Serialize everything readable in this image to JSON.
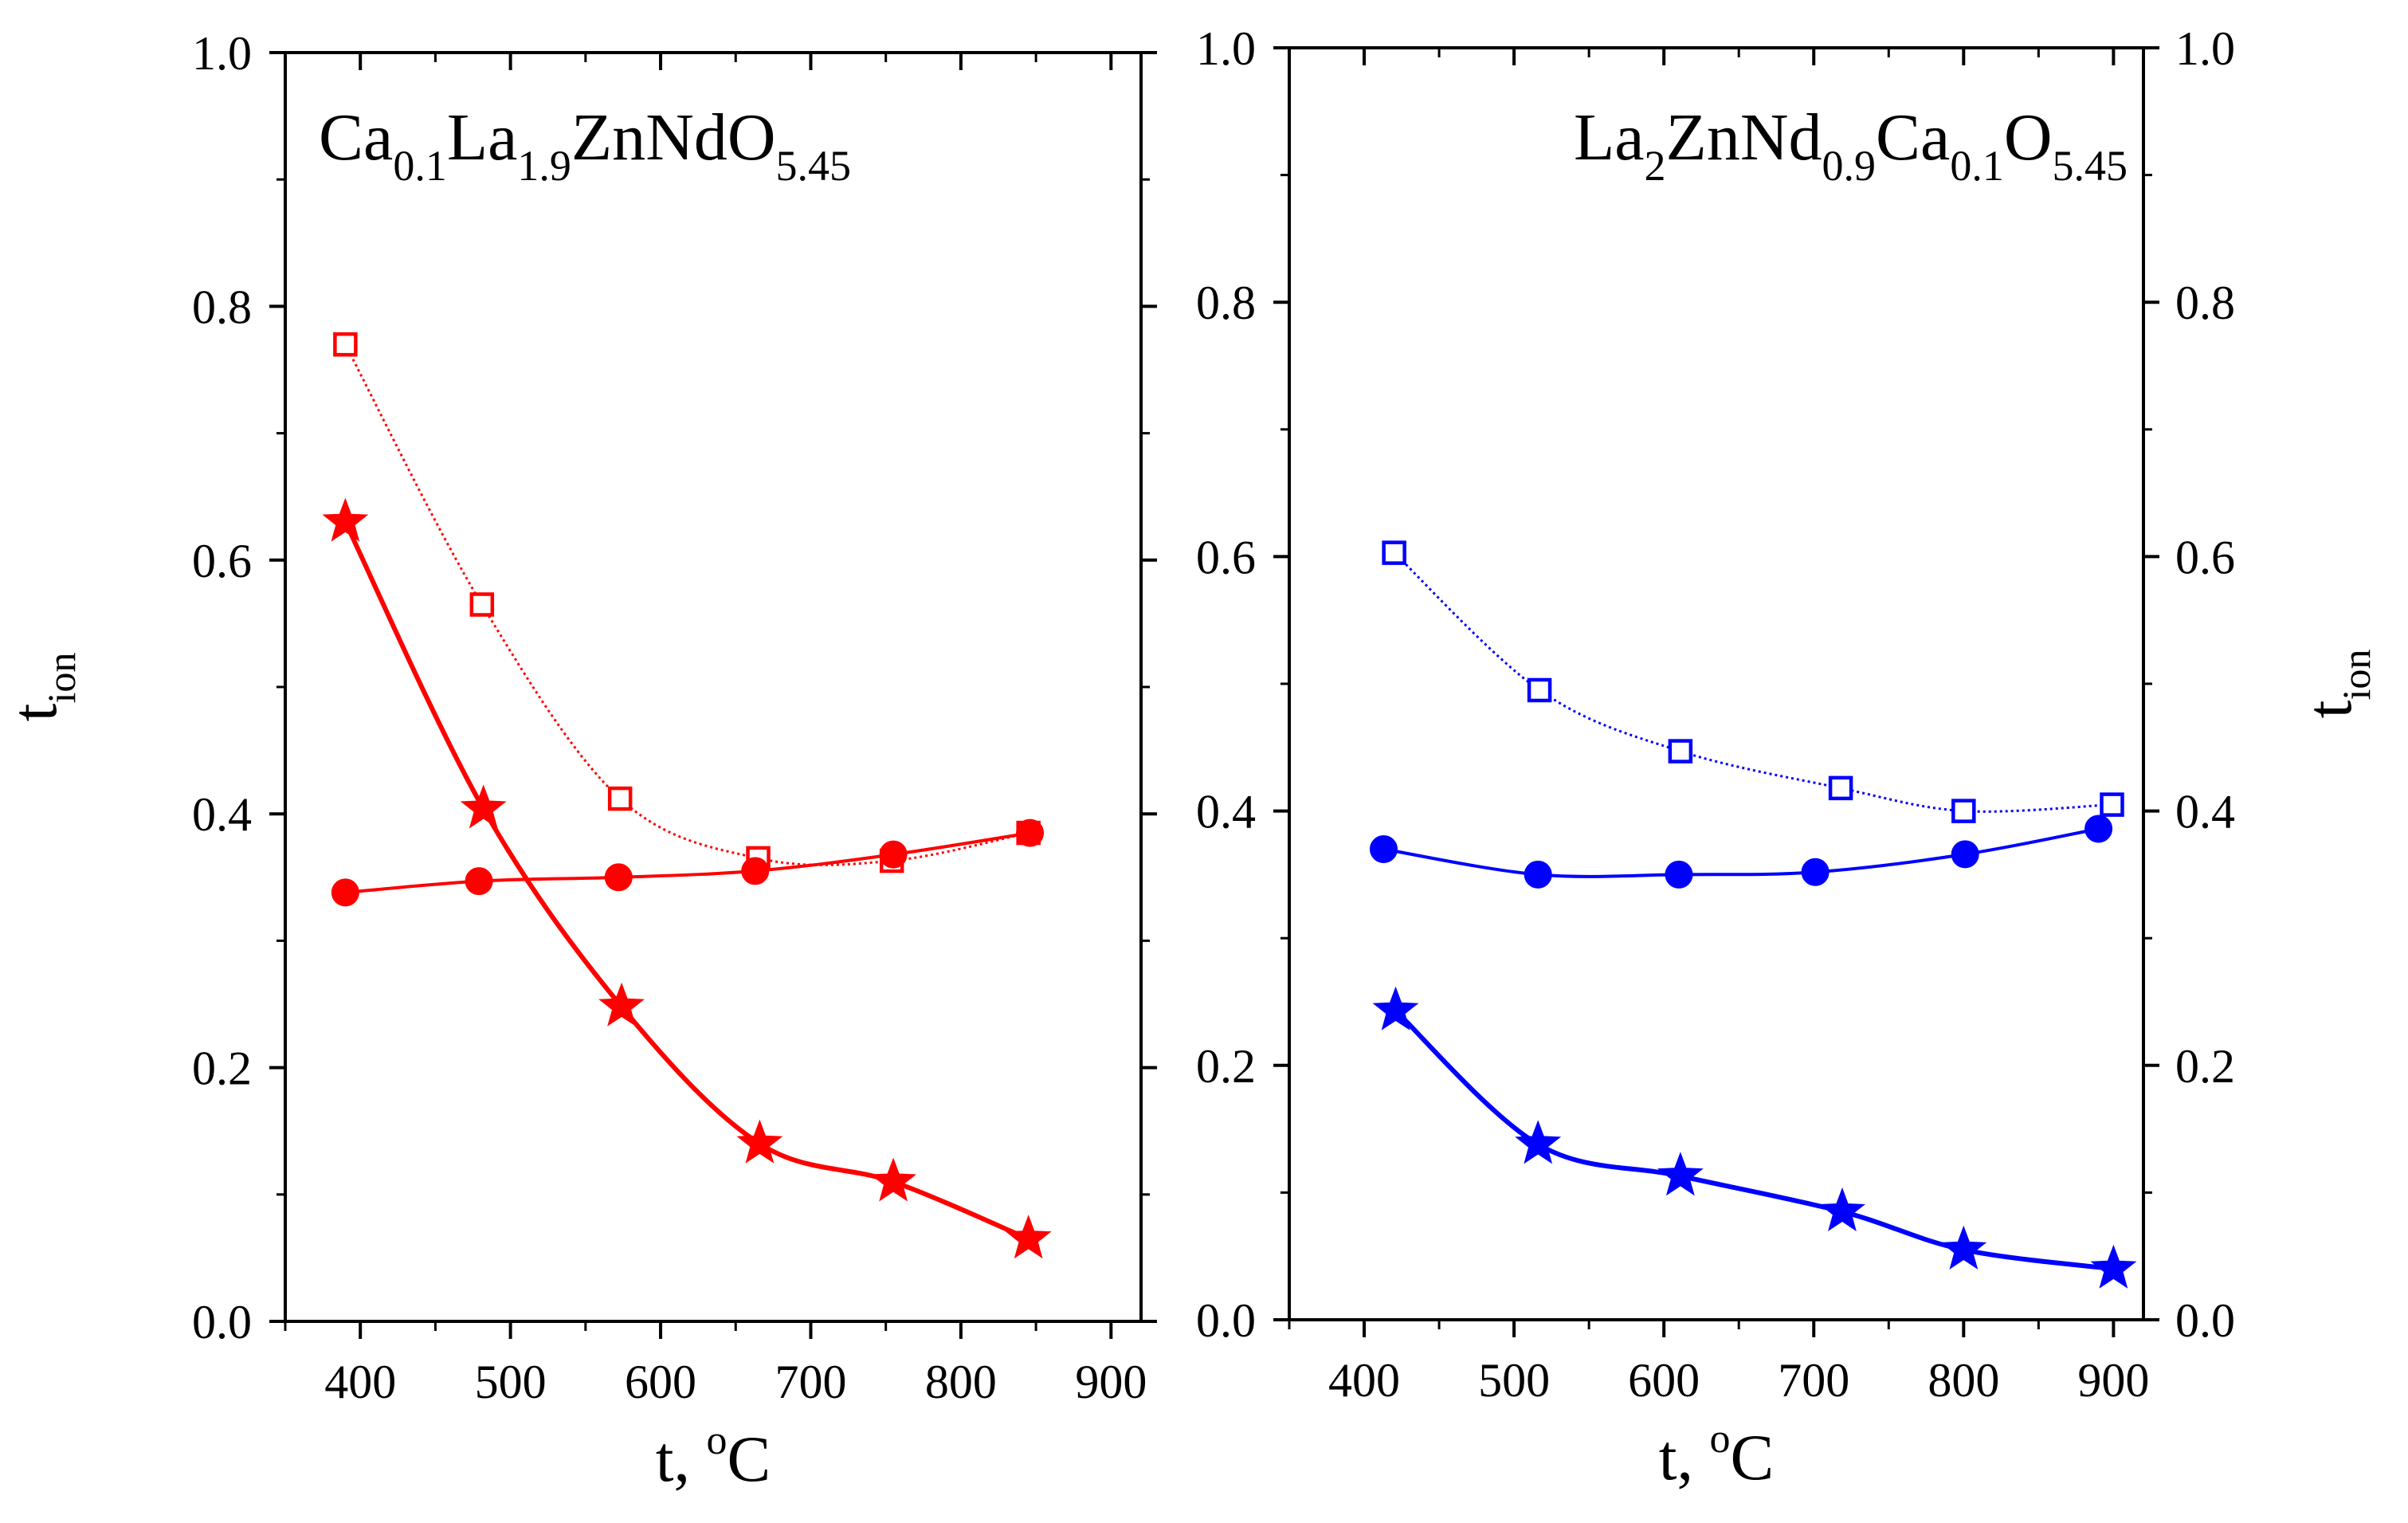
{
  "colors": {
    "left": "#ff0000",
    "right": "#0000ff",
    "axis": "#000000"
  },
  "chart_data": [
    {
      "type": "line",
      "panel": "left",
      "title_parts": [
        {
          "t": "Ca",
          "sub": false
        },
        {
          "t": "0.1",
          "sub": true
        },
        {
          "t": "La",
          "sub": false
        },
        {
          "t": "1.9",
          "sub": true
        },
        {
          "t": "ZnNdO",
          "sub": false
        },
        {
          "t": "5.45",
          "sub": true
        }
      ],
      "xlabel_main": "t, ",
      "xlabel_sup": "o",
      "xlabel_unit": "C",
      "ylabel_main": "t",
      "ylabel_sub": "ion",
      "xlim": [
        350,
        920
      ],
      "ylim": [
        0,
        1.0
      ],
      "xticks": [
        400,
        500,
        600,
        700,
        800,
        900
      ],
      "yticks": [
        "0.0",
        "0.2",
        "0.4",
        "0.6",
        "0.8",
        "1.0"
      ],
      "series": [
        {
          "name": "open squares",
          "marker": "square-open",
          "line": "dotted",
          "x": [
            390,
            481,
            573,
            665,
            754,
            845
          ],
          "y": [
            0.77,
            0.565,
            0.412,
            0.365,
            0.363,
            0.385
          ]
        },
        {
          "name": "filled circles",
          "marker": "circle",
          "line": "solid",
          "x": [
            390,
            479,
            572,
            663,
            755,
            846
          ],
          "y": [
            0.338,
            0.347,
            0.35,
            0.355,
            0.368,
            0.385
          ]
        },
        {
          "name": "stars",
          "marker": "star",
          "line": "solid-thick",
          "x": [
            390,
            482,
            574,
            666,
            755,
            845
          ],
          "y": [
            0.63,
            0.404,
            0.248,
            0.14,
            0.11,
            0.065
          ]
        }
      ]
    },
    {
      "type": "line",
      "panel": "right",
      "title_parts": [
        {
          "t": "La",
          "sub": false
        },
        {
          "t": "2",
          "sub": true
        },
        {
          "t": "ZnNd",
          "sub": false
        },
        {
          "t": "0.9",
          "sub": true
        },
        {
          "t": "Ca",
          "sub": false
        },
        {
          "t": "0.1",
          "sub": true
        },
        {
          "t": "O",
          "sub": false
        },
        {
          "t": "5.45",
          "sub": true
        }
      ],
      "xlabel_main": "t, ",
      "xlabel_sup": "o",
      "xlabel_unit": "C",
      "ylabel_main": "t",
      "ylabel_sub": "ion",
      "xlim": [
        350,
        920
      ],
      "ylim": [
        0,
        1.0
      ],
      "xticks": [
        400,
        500,
        600,
        700,
        800,
        900
      ],
      "yticks": [
        "0.0",
        "0.2",
        "0.4",
        "0.6",
        "0.8",
        "1.0"
      ],
      "series": [
        {
          "name": "open squares",
          "marker": "square-open",
          "line": "dotted",
          "x": [
            420,
            517,
            611,
            718,
            800,
            899
          ],
          "y": [
            0.603,
            0.495,
            0.447,
            0.418,
            0.4,
            0.405
          ]
        },
        {
          "name": "filled circles",
          "marker": "circle",
          "line": "solid",
          "x": [
            413,
            516,
            610,
            701,
            801,
            890
          ],
          "y": [
            0.37,
            0.35,
            0.35,
            0.352,
            0.366,
            0.386
          ]
        },
        {
          "name": "stars",
          "marker": "star",
          "line": "solid-thick",
          "x": [
            421,
            516,
            611,
            719,
            800,
            900
          ],
          "y": [
            0.243,
            0.138,
            0.113,
            0.085,
            0.055,
            0.04
          ]
        }
      ]
    }
  ]
}
